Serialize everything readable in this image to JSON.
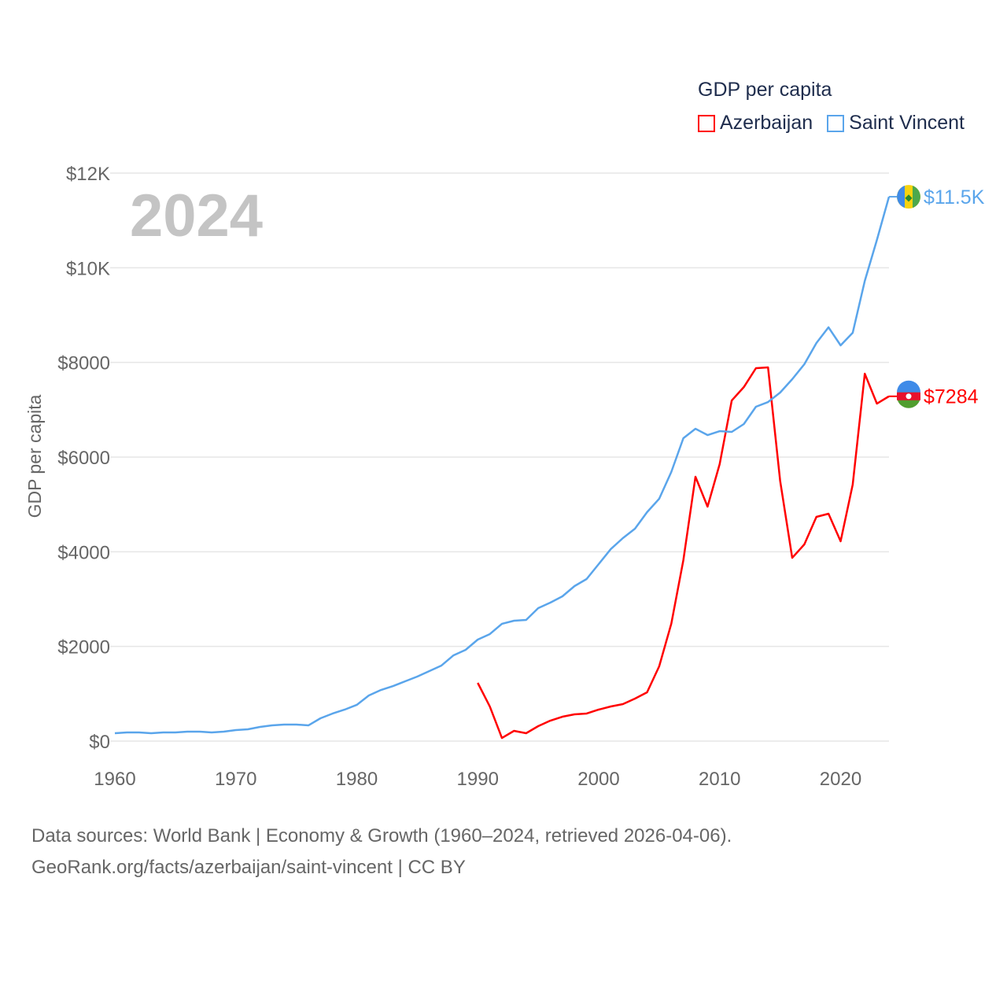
{
  "chart_data": {
    "type": "line",
    "title": "GDP per capita",
    "year_label": "2024",
    "ylabel": "GDP per capita",
    "xlabel": "",
    "xlim": [
      1960,
      2024
    ],
    "ylim": [
      0,
      12000
    ],
    "x_ticks": [
      1960,
      1970,
      1980,
      1990,
      2000,
      2010,
      2020
    ],
    "x_tick_labels": [
      "1960",
      "1970",
      "1980",
      "1990",
      "2000",
      "2010",
      "2020"
    ],
    "y_ticks": [
      0,
      2000,
      4000,
      6000,
      8000,
      10000,
      12000
    ],
    "y_tick_labels": [
      "$0",
      "$2000",
      "$4000",
      "$6000",
      "$8000",
      "$10K",
      "$12K"
    ],
    "grid": true,
    "legend_position": "top-right",
    "series": [
      {
        "name": "Azerbaijan",
        "color": "#ff0000",
        "end_label": "$7284",
        "flag": "azerbaijan-flag",
        "start_year": 1990,
        "values": [
          1230,
          731,
          66,
          216,
          166,
          316,
          432,
          515,
          565,
          582,
          665,
          731,
          781,
          897,
          1030,
          1579,
          2477,
          3823,
          5584,
          4953,
          5850,
          7196,
          7479,
          7878,
          7894,
          5501,
          3872,
          4155,
          4737,
          4803,
          4221,
          5418,
          7761,
          7130,
          7284
        ]
      },
      {
        "name": "Saint Vincent",
        "color": "#5aa5eb",
        "end_label": "$11.5K",
        "flag": "saint-vincent-flag",
        "start_year": 1960,
        "values": [
          166,
          183,
          183,
          166,
          183,
          183,
          199,
          199,
          183,
          199,
          233,
          249,
          299,
          332,
          349,
          349,
          332,
          482,
          582,
          665,
          765,
          964,
          1080,
          1163,
          1263,
          1363,
          1479,
          1596,
          1812,
          1928,
          2144,
          2261,
          2477,
          2543,
          2560,
          2809,
          2925,
          3058,
          3274,
          3424,
          3740,
          4056,
          4288,
          4488,
          4837,
          5119,
          5684,
          6399,
          6598,
          6465,
          6548,
          6532,
          6698,
          7064,
          7163,
          7363,
          7645,
          7961,
          8410,
          8742,
          8360,
          8626,
          9723,
          10587,
          11500
        ]
      }
    ]
  },
  "footer": {
    "line1": "Data sources: World Bank | Economy & Growth (1960–2024, retrieved 2026-04-06).",
    "line2": "GeoRank.org/facts/azerbaijan/saint-vincent | CC BY"
  }
}
